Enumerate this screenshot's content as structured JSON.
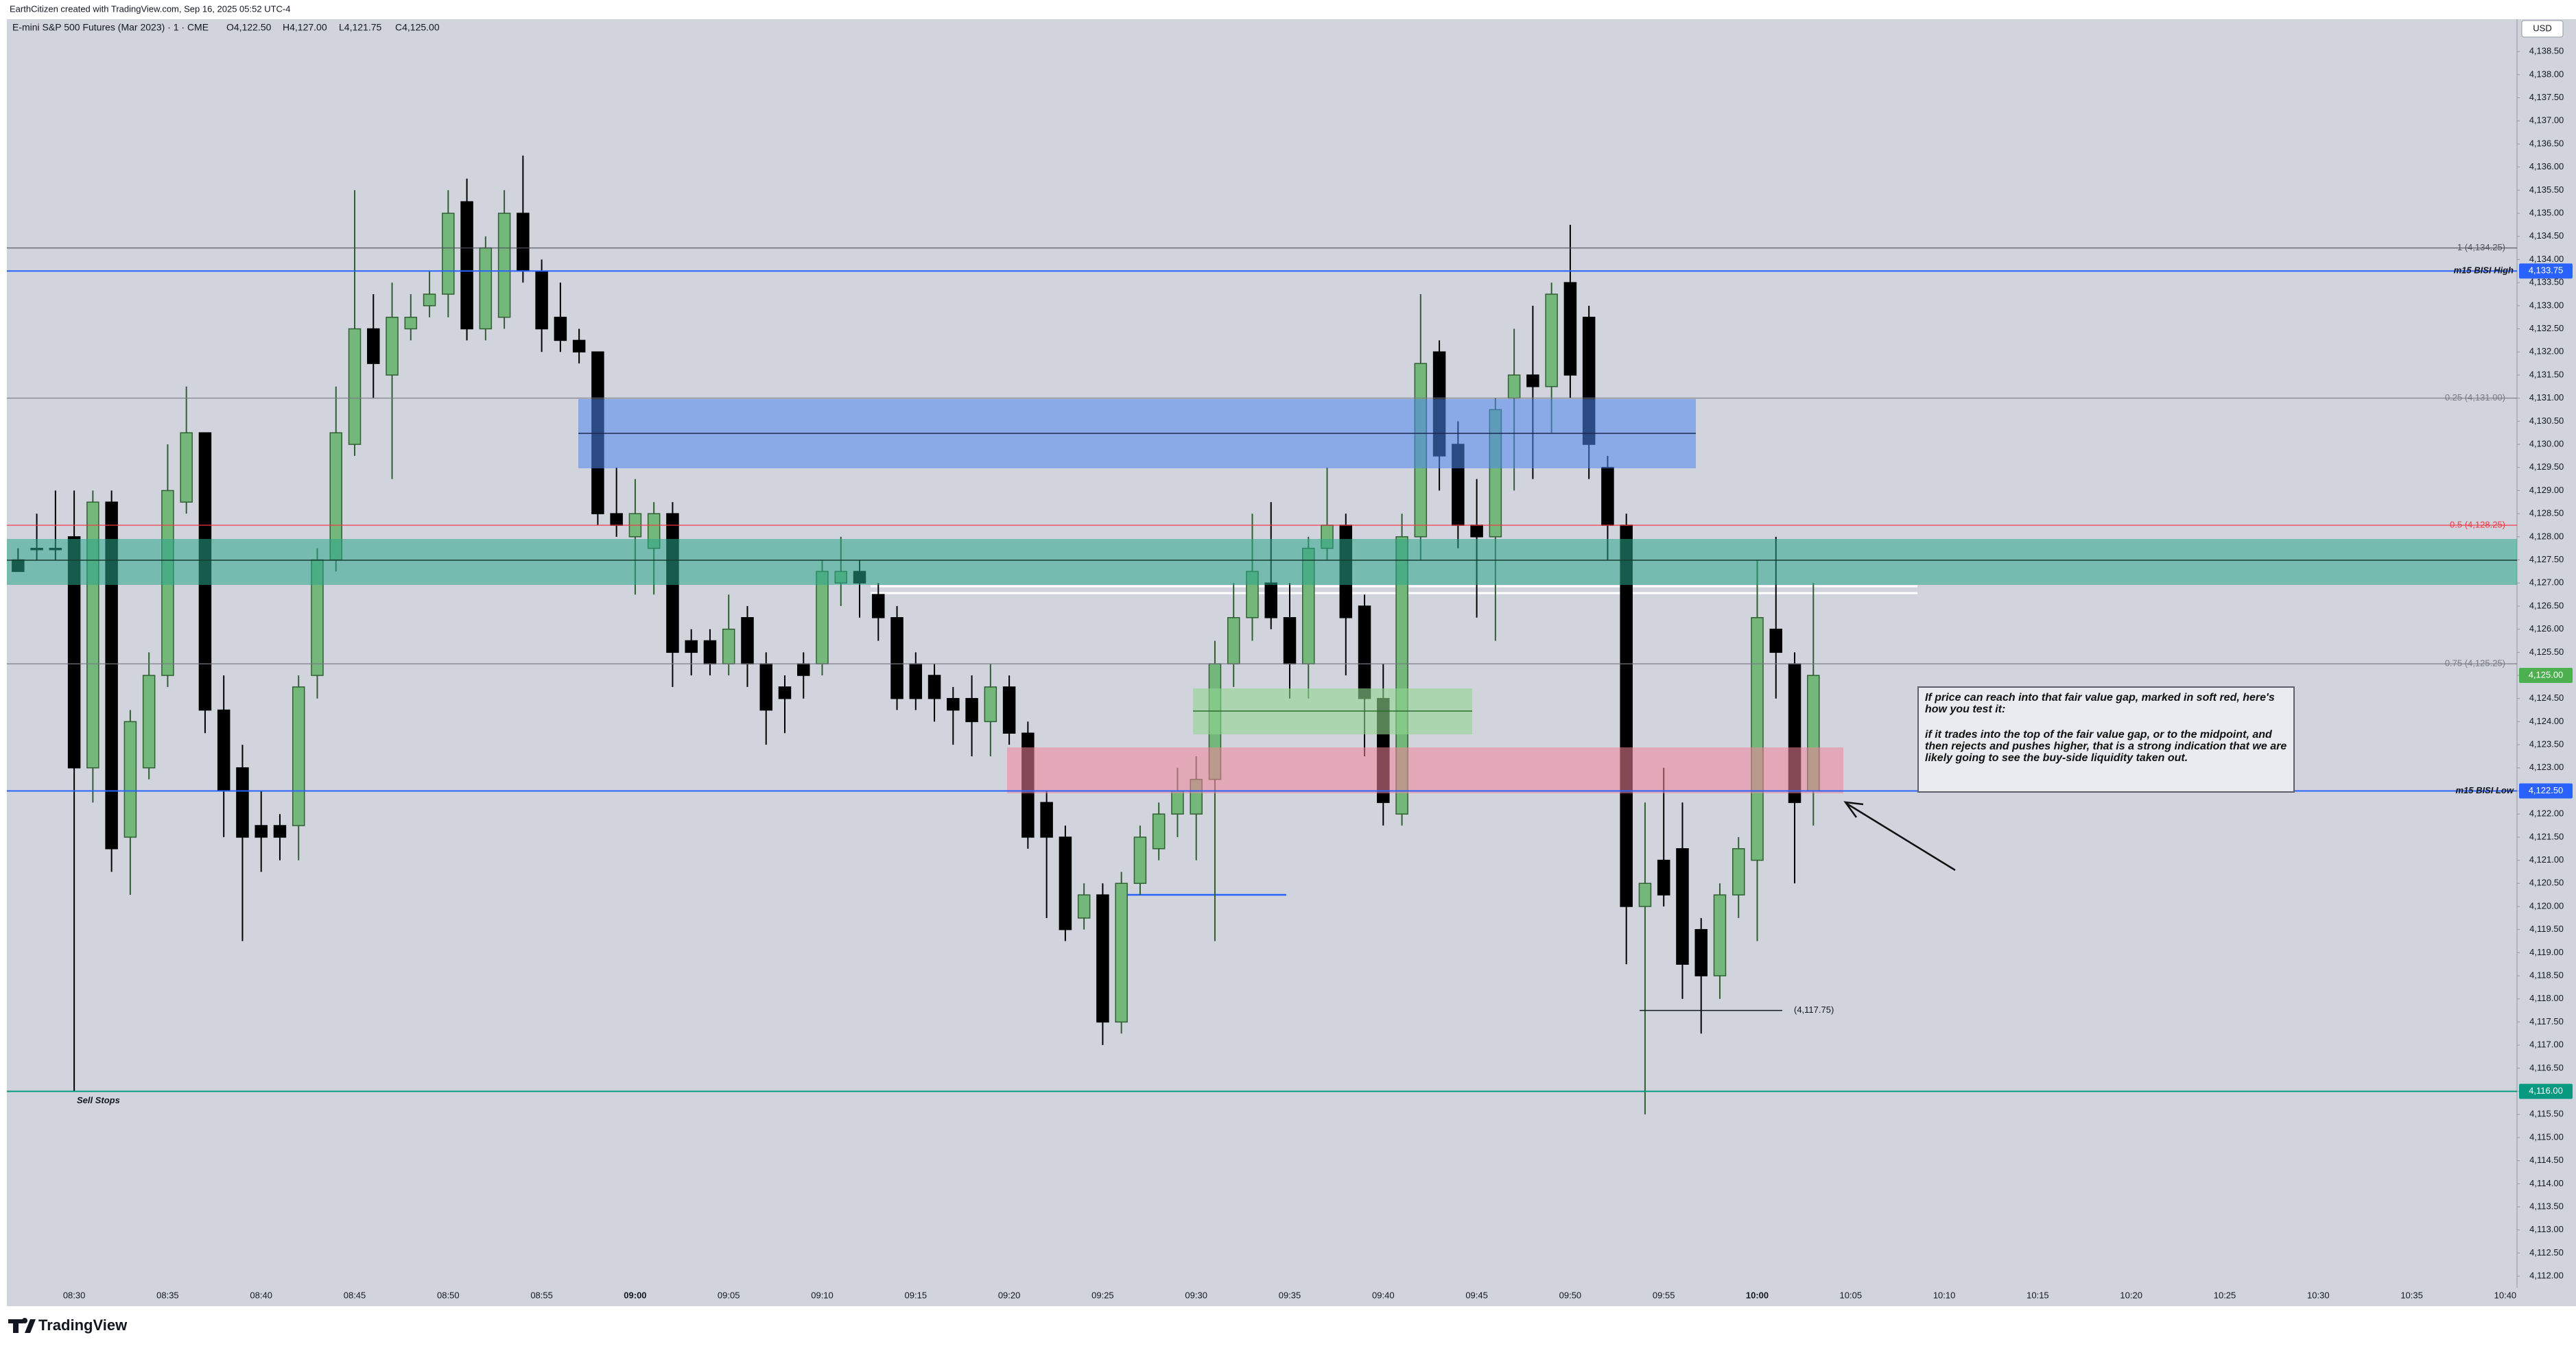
{
  "chart_data": {
    "type": "candlestick",
    "credit": "EarthCitizen created with TradingView.com, Sep 16, 2025 05:52 UTC-4",
    "title": "E-mini S&P 500 Futures (Mar 2023) · 1 · CME",
    "ohlc": [
      "O4,122.50",
      "H4,127.00",
      "L4,121.75",
      "C4,125.00"
    ],
    "currency": "USD",
    "brand": "TradingView",
    "note": [
      "If price can reach into that fair value gap, marked in soft red, here's how you test it:",
      "if it trades into the top of the fair value gap, or to the midpoint, and then rejects and pushes higher, that is a strong indication that we are likely going to see the buy-side liquidity taken out."
    ],
    "up_color": "#74b77a",
    "up_border": "#2f5f33",
    "down_color": "#000000",
    "grid": false,
    "categories": [
      null,
      null,
      null,
      "08:30",
      null,
      null,
      null,
      null,
      "08:35",
      null,
      null,
      null,
      null,
      "08:40",
      null,
      null,
      null,
      null,
      "08:45",
      null,
      null,
      null,
      null,
      "08:50",
      null,
      null,
      null,
      null,
      "08:55",
      null,
      null,
      null,
      null,
      "09:00",
      null,
      null,
      null,
      null,
      "09:05",
      null,
      null,
      null,
      null,
      "09:10",
      null,
      null,
      null,
      null,
      "09:15",
      null,
      null,
      null,
      null,
      "09:20",
      null,
      null,
      null,
      null,
      "09:25",
      null,
      null,
      null,
      null,
      "09:30",
      null,
      null,
      null,
      null,
      "09:35",
      null,
      null,
      null,
      null,
      "09:40",
      null,
      null,
      null,
      null,
      "09:45",
      null,
      null,
      null,
      null,
      "09:50",
      null,
      null,
      null,
      null,
      "09:55",
      null,
      null,
      null,
      null,
      "10:00",
      null,
      null,
      null,
      null,
      "10:05",
      null,
      null,
      null,
      null,
      "10:10",
      null,
      null,
      null,
      null,
      "10:15",
      null,
      null,
      null,
      null,
      "10:20",
      null,
      null,
      null,
      null,
      "10:25",
      null,
      null,
      null,
      null,
      "10:30",
      null,
      null,
      null,
      null,
      "10:35",
      null,
      null,
      null,
      null,
      "10:40"
    ],
    "open": [
      4127.5,
      4127.75,
      4127.75,
      4128.0,
      4123.0,
      4128.75,
      4121.5,
      4123.0,
      4125.0,
      4128.75,
      4130.25,
      4124.25,
      4123.0,
      4121.75,
      4121.75,
      4121.75,
      4125.0,
      4127.5,
      4130.0,
      4132.5,
      4131.5,
      4132.5,
      4133.0,
      4133.25,
      4135.25,
      4132.5,
      4132.75,
      4135.0,
      4133.75,
      4132.75,
      4132.25,
      4132.0,
      4128.5,
      4128.0,
      4127.75,
      4128.5,
      4125.75,
      4125.75,
      4125.25,
      4126.25,
      4125.25,
      4124.75,
      4125.25,
      4125.25,
      4127.0,
      4127.25,
      4126.75,
      4126.25,
      4125.25,
      4125.0,
      4124.5,
      4124.5,
      4124.0,
      4124.75,
      4123.75,
      4122.25,
      4121.5,
      4119.75,
      4120.25,
      4117.5,
      4120.5,
      4121.25,
      4122.0,
      4122.0,
      4122.75,
      4125.25,
      4126.25,
      4127.0,
      4126.25,
      4125.25,
      4127.75,
      4128.25,
      4126.5,
      4124.5,
      4122.0,
      4128.0,
      4132.0,
      4130.0,
      4128.25,
      4128.0,
      4131.0,
      4131.5,
      4131.25,
      4133.5,
      4132.75,
      4129.5,
      4128.25,
      4120.0,
      4121.0,
      4121.25,
      4119.5,
      4118.5,
      4120.25,
      4121.0,
      4126.0,
      4125.25,
      4122.5,
      null,
      null,
      null,
      null,
      null,
      null,
      null,
      null,
      null,
      null,
      null,
      null,
      null,
      null,
      null,
      null,
      null,
      null,
      null,
      null,
      null,
      null,
      null,
      null,
      null,
      null,
      null,
      null,
      null,
      null,
      null,
      null,
      null,
      null,
      null,
      null,
      null
    ],
    "high": [
      4127.75,
      4128.5,
      4129.0,
      4129.0,
      4129.0,
      4129.0,
      4124.25,
      4125.5,
      4130.0,
      4131.25,
      4130.25,
      4125.0,
      4123.5,
      4122.5,
      4122.0,
      4125.0,
      4127.75,
      4131.25,
      4135.5,
      4133.25,
      4133.5,
      4133.25,
      4133.75,
      4135.5,
      4135.75,
      4134.5,
      4135.5,
      4136.25,
      4134.0,
      4133.5,
      4132.5,
      4132.0,
      4129.5,
      4129.25,
      4128.75,
      4128.75,
      4126.0,
      4126.0,
      4126.75,
      4126.5,
      4125.5,
      4125.0,
      4125.5,
      4127.5,
      4128.0,
      4127.5,
      4127.0,
      4126.5,
      4125.5,
      4125.25,
      4124.75,
      4125.0,
      4125.25,
      4125.0,
      4124.0,
      4122.5,
      4121.75,
      4120.5,
      4120.5,
      4120.75,
      4121.75,
      4122.25,
      4123.0,
      4123.25,
      4125.75,
      4127.0,
      4128.5,
      4128.75,
      4127.0,
      4128.0,
      4129.5,
      4128.5,
      4126.75,
      4125.25,
      4128.5,
      4133.25,
      4132.25,
      4130.5,
      4129.25,
      4131.0,
      4132.5,
      4133.0,
      4133.5,
      4134.75,
      4133.0,
      4129.75,
      4128.5,
      4122.25,
      4123.0,
      4122.25,
      4119.75,
      4120.5,
      4121.5,
      4127.5,
      4128.0,
      4125.5,
      4127.0,
      null,
      null,
      null,
      null,
      null,
      null,
      null,
      null,
      null,
      null,
      null,
      null,
      null,
      null,
      null,
      null,
      null,
      null,
      null,
      null,
      null,
      null,
      null,
      null,
      null,
      null,
      null,
      null,
      null,
      null,
      null,
      null,
      null,
      null,
      null,
      null,
      null
    ],
    "low": [
      4127.25,
      4127.5,
      4127.5,
      4116.0,
      4122.25,
      4120.75,
      4120.25,
      4122.75,
      4124.75,
      4128.5,
      4123.75,
      4121.5,
      4119.25,
      4120.75,
      4121.0,
      4121.0,
      4124.5,
      4127.25,
      4129.75,
      4131.0,
      4129.25,
      4132.25,
      4132.75,
      4132.75,
      4132.25,
      4132.25,
      4132.5,
      4133.5,
      4132.0,
      4132.0,
      4131.75,
      4128.25,
      4128.0,
      4126.75,
      4126.75,
      4124.75,
      4125.0,
      4125.0,
      4125.0,
      4124.75,
      4123.5,
      4123.75,
      4124.5,
      4125.0,
      4126.5,
      4126.25,
      4125.75,
      4124.25,
      4124.25,
      4124.0,
      4123.5,
      4123.25,
      4123.25,
      4123.5,
      4121.25,
      4119.75,
      4119.25,
      4119.5,
      4117.0,
      4117.25,
      4120.25,
      4121.0,
      4121.5,
      4121.0,
      4119.25,
      4124.75,
      4125.75,
      4126.0,
      4124.5,
      4124.5,
      4127.5,
      4125.0,
      4123.25,
      4121.75,
      4121.75,
      4127.5,
      4129.0,
      4127.75,
      4126.25,
      4125.75,
      4129.0,
      4129.25,
      4130.25,
      4131.0,
      4129.25,
      4127.5,
      4118.75,
      4115.5,
      4120.0,
      4118.0,
      4117.25,
      4118.0,
      4119.75,
      4119.25,
      4124.5,
      4120.5,
      4121.75,
      null,
      null,
      null,
      null,
      null,
      null,
      null,
      null,
      null,
      null,
      null,
      null,
      null,
      null,
      null,
      null,
      null,
      null,
      null,
      null,
      null,
      null,
      null,
      null,
      null,
      null,
      null,
      null,
      null,
      null,
      null,
      null,
      null,
      null,
      null,
      null,
      null
    ],
    "close": [
      4127.25,
      4127.75,
      4127.75,
      4123.0,
      4128.75,
      4121.25,
      4124.0,
      4125.0,
      4129.0,
      4130.25,
      4124.25,
      4122.5,
      4121.5,
      4121.5,
      4121.5,
      4124.75,
      4127.5,
      4130.25,
      4132.5,
      4131.75,
      4132.75,
      4132.75,
      4133.25,
      4135.0,
      4132.5,
      4134.25,
      4135.0,
      4133.75,
      4132.5,
      4132.25,
      4132.0,
      4128.5,
      4128.25,
      4128.5,
      4128.5,
      4125.5,
      4125.5,
      4125.25,
      4126.0,
      4125.25,
      4124.25,
      4124.5,
      4125.0,
      4127.25,
      4127.25,
      4127.0,
      4126.25,
      4124.5,
      4124.5,
      4124.5,
      4124.25,
      4124.0,
      4124.75,
      4123.75,
      4121.5,
      4121.5,
      4119.5,
      4120.25,
      4117.5,
      4120.5,
      4121.5,
      4122.0,
      4122.5,
      4122.75,
      4125.25,
      4126.25,
      4127.25,
      4126.25,
      4125.25,
      4127.75,
      4128.25,
      4126.25,
      4124.5,
      4122.25,
      4128.0,
      4131.75,
      4129.75,
      4128.25,
      4128.0,
      4130.75,
      4131.5,
      4131.25,
      4133.25,
      4131.5,
      4130.0,
      4128.25,
      4120.0,
      4120.5,
      4120.25,
      4118.75,
      4118.5,
      4120.25,
      4121.25,
      4126.25,
      4125.5,
      4122.25,
      4125.0,
      null,
      null,
      null,
      null,
      null,
      null,
      null,
      null,
      null,
      null,
      null,
      null,
      null,
      null,
      null,
      null,
      null,
      null,
      null,
      null,
      null,
      null,
      null,
      null,
      null,
      null,
      null,
      null,
      null,
      null,
      null,
      null,
      null,
      null,
      null,
      null,
      null
    ],
    "ylim": [
      4111.75,
      4139.2
    ],
    "yticks": [
      {
        "value": 4112,
        "label": "4,112.00"
      },
      {
        "value": 4112.5,
        "label": "4,112.50"
      },
      {
        "value": 4113,
        "label": "4,113.00"
      },
      {
        "value": 4113.5,
        "label": "4,113.50"
      },
      {
        "value": 4114,
        "label": "4,114.00"
      },
      {
        "value": 4114.5,
        "label": "4,114.50"
      },
      {
        "value": 4115,
        "label": "4,115.00"
      },
      {
        "value": 4115.5,
        "label": "4,115.50"
      },
      {
        "value": 4116,
        "label": "4,116.00"
      },
      {
        "value": 4116.5,
        "label": "4,116.50"
      },
      {
        "value": 4117,
        "label": "4,117.00"
      },
      {
        "value": 4117.5,
        "label": "4,117.50"
      },
      {
        "value": 4118,
        "label": "4,118.00"
      },
      {
        "value": 4118.5,
        "label": "4,118.50"
      },
      {
        "value": 4119,
        "label": "4,119.00"
      },
      {
        "value": 4119.5,
        "label": "4,119.50"
      },
      {
        "value": 4120,
        "label": "4,120.00"
      },
      {
        "value": 4120.5,
        "label": "4,120.50"
      },
      {
        "value": 4121,
        "label": "4,121.00"
      },
      {
        "value": 4121.5,
        "label": "4,121.50"
      },
      {
        "value": 4122,
        "label": "4,122.00"
      },
      {
        "value": 4122.5,
        "label": "4,122.50"
      },
      {
        "value": 4123,
        "label": "4,123.00"
      },
      {
        "value": 4123.5,
        "label": "4,123.50"
      },
      {
        "value": 4124,
        "label": "4,124.00"
      },
      {
        "value": 4124.5,
        "label": "4,124.50"
      },
      {
        "value": 4125,
        "label": "4,125.00"
      },
      {
        "value": 4125.5,
        "label": "4,125.50"
      },
      {
        "value": 4126,
        "label": "4,126.00"
      },
      {
        "value": 4126.5,
        "label": "4,126.50"
      },
      {
        "value": 4127,
        "label": "4,127.00"
      },
      {
        "value": 4127.5,
        "label": "4,127.50"
      },
      {
        "value": 4128,
        "label": "4,128.00"
      },
      {
        "value": 4128.5,
        "label": "4,128.50"
      },
      {
        "value": 4129,
        "label": "4,129.00"
      },
      {
        "value": 4129.5,
        "label": "4,129.50"
      },
      {
        "value": 4130,
        "label": "4,130.00"
      },
      {
        "value": 4130.5,
        "label": "4,130.50"
      },
      {
        "value": 4131,
        "label": "4,131.00"
      },
      {
        "value": 4131.5,
        "label": "4,131.50"
      },
      {
        "value": 4132,
        "label": "4,132.00"
      },
      {
        "value": 4132.5,
        "label": "4,132.50"
      },
      {
        "value": 4133,
        "label": "4,133.00"
      },
      {
        "value": 4133.5,
        "label": "4,133.50"
      },
      {
        "value": 4134,
        "label": "4,134.00"
      },
      {
        "value": 4134.5,
        "label": "4,134.50"
      },
      {
        "value": 4135,
        "label": "4,135.00"
      },
      {
        "value": 4135.5,
        "label": "4,135.50"
      },
      {
        "value": 4136,
        "label": "4,136.00"
      },
      {
        "value": 4136.5,
        "label": "4,136.50"
      },
      {
        "value": 4137,
        "label": "4,137.00"
      },
      {
        "value": 4137.5,
        "label": "4,137.50"
      },
      {
        "value": 4138,
        "label": "4,138.00"
      },
      {
        "value": 4138.5,
        "label": "4,138.50"
      }
    ],
    "levels": [
      {
        "value": 4134.25,
        "label": "1 (4,134.25)",
        "color": "#50535e"
      },
      {
        "value": 4131.0,
        "label": "0.25 (4,131.00)",
        "color": "#787b86"
      },
      {
        "value": 4128.25,
        "label": "0.5 (4,128.25)",
        "color": "#f23645"
      },
      {
        "value": 4125.25,
        "label": "0.75 (4,125.25)",
        "color": "#787b86"
      }
    ],
    "price_tags": [
      {
        "value": 4133.75,
        "label": "4,133.75",
        "name": "m15 BISI High",
        "name_side": "right",
        "color": "#2962ff"
      },
      {
        "value": 4125.0,
        "label": "4,125.00",
        "color": "#4caf50"
      },
      {
        "value": 4122.5,
        "label": "4,122.50",
        "name": "m15 BISI Low",
        "name_side": "right",
        "color": "#2962ff"
      },
      {
        "value": 4116.0,
        "label": "4,116.00",
        "name": "Sell Stops",
        "name_side": "left",
        "color": "#089981"
      }
    ],
    "low_marker": {
      "value": 4117.75,
      "label": "(4,117.75)"
    }
  }
}
